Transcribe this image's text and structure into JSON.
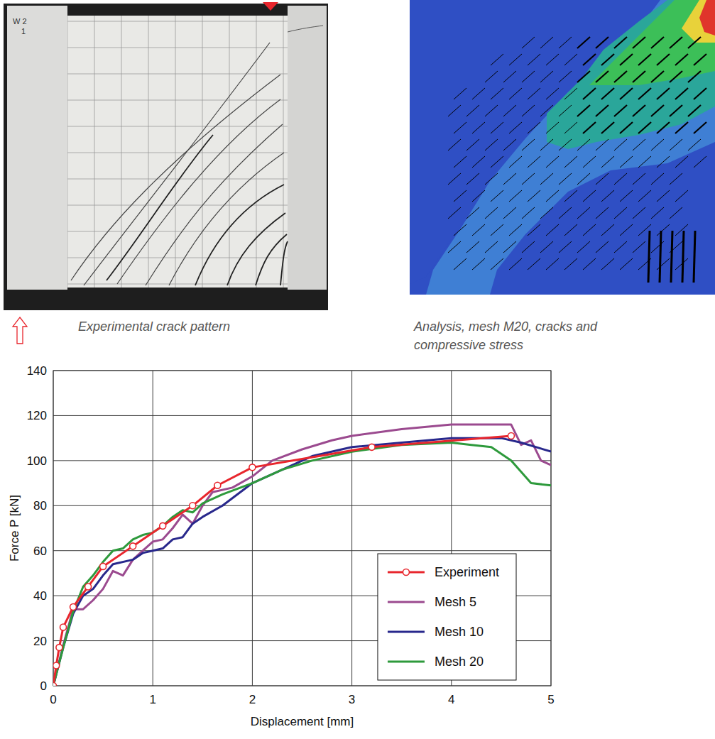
{
  "chart_data": {
    "type": "line",
    "xlabel": "Displacement [mm]",
    "ylabel": "Force P [kN]",
    "xlim": [
      0,
      5
    ],
    "ylim": [
      0,
      140
    ],
    "xticks": [
      0,
      1,
      2,
      3,
      4,
      5
    ],
    "yticks": [
      0,
      20,
      40,
      60,
      80,
      100,
      120,
      140
    ],
    "grid": true,
    "legend": "lower right",
    "series": [
      {
        "name": "Experiment",
        "color": "#e8262d",
        "marker": "circle",
        "x": [
          0,
          0.03,
          0.06,
          0.1,
          0.2,
          0.35,
          0.5,
          0.8,
          1.1,
          1.4,
          1.65,
          2.0,
          3.2,
          4.6
        ],
        "values": [
          0,
          9,
          17,
          26,
          35,
          44,
          53,
          62,
          71,
          80,
          89,
          97,
          106,
          111
        ]
      },
      {
        "name": "Mesh 5",
        "color": "#9b4a8f",
        "marker": "none",
        "x": [
          0,
          0.1,
          0.2,
          0.3,
          0.4,
          0.5,
          0.6,
          0.7,
          0.8,
          0.9,
          1.0,
          1.1,
          1.2,
          1.3,
          1.4,
          1.5,
          1.6,
          1.8,
          2.0,
          2.2,
          2.5,
          2.8,
          3.0,
          3.5,
          4.0,
          4.5,
          4.6,
          4.7,
          4.8,
          4.9,
          5.0
        ],
        "values": [
          0,
          18,
          34,
          34,
          38,
          43,
          51,
          49,
          56,
          60,
          64,
          65,
          70,
          76,
          72,
          80,
          86,
          88,
          93,
          100,
          105,
          109,
          111,
          114,
          116,
          116,
          116,
          107,
          109,
          100,
          98
        ]
      },
      {
        "name": "Mesh 10",
        "color": "#28288c",
        "marker": "none",
        "x": [
          0,
          0.1,
          0.2,
          0.3,
          0.4,
          0.5,
          0.6,
          0.8,
          0.9,
          1.0,
          1.1,
          1.2,
          1.3,
          1.4,
          1.5,
          1.7,
          2.0,
          2.3,
          2.6,
          3.0,
          3.5,
          4.0,
          4.5,
          4.7,
          5.0
        ],
        "values": [
          0,
          17,
          32,
          40,
          43,
          49,
          54,
          56,
          59,
          60,
          61,
          65,
          66,
          72,
          75,
          80,
          90,
          96,
          102,
          106,
          108,
          110,
          110,
          108,
          104
        ]
      },
      {
        "name": "Mesh 20",
        "color": "#2e9a3c",
        "marker": "none",
        "x": [
          0,
          0.1,
          0.2,
          0.3,
          0.4,
          0.5,
          0.6,
          0.7,
          0.8,
          0.9,
          1.0,
          1.1,
          1.2,
          1.3,
          1.4,
          1.5,
          1.7,
          2.0,
          2.3,
          2.6,
          3.0,
          3.5,
          4.0,
          4.2,
          4.4,
          4.6,
          4.8,
          5.0
        ],
        "values": [
          0,
          17,
          33,
          44,
          49,
          55,
          60,
          61,
          65,
          67,
          68,
          71,
          75,
          78,
          77,
          81,
          85,
          90,
          96,
          100,
          104,
          107,
          108,
          107,
          106,
          100,
          90,
          89
        ]
      }
    ]
  },
  "specimen_label": [
    "W 2",
    "1"
  ],
  "panels": [
    {
      "caption": "Experimental crack pattern"
    },
    {
      "caption": "Analysis, mesh M20, cracks and compressive stress"
    }
  ]
}
